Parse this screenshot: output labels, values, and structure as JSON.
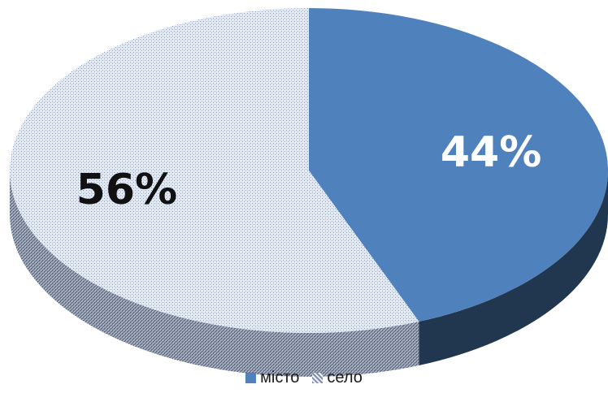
{
  "chart_data": {
    "type": "pie",
    "style": "3d",
    "categories": [
      "місто",
      "село"
    ],
    "values": [
      44,
      56
    ],
    "labels": [
      "44%",
      "56%"
    ],
    "colors": [
      "#4F81BD",
      "#C6CCD8"
    ],
    "pattern": [
      false,
      true
    ],
    "legend_position": "bottom"
  },
  "legend": {
    "items": [
      {
        "label": "місто"
      },
      {
        "label": "село"
      }
    ]
  }
}
